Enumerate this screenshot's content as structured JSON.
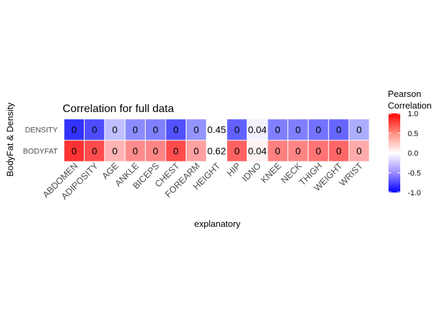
{
  "chart_data": {
    "type": "heatmap",
    "title": "Correlation for full data",
    "xlabel": "explanatory",
    "ylabel": "BodyFat & Density",
    "x_categories": [
      "ABDOMEN",
      "ADIPOSITY",
      "AGE",
      "ANKLE",
      "BICEPS",
      "CHEST",
      "FOREARM",
      "HEIGHT",
      "HIP",
      "IDNO",
      "KNEE",
      "NECK",
      "THIGH",
      "WEIGHT",
      "WRIST"
    ],
    "y_categories": [
      "DENSITY",
      "BODYFAT"
    ],
    "cell_labels": [
      [
        "0",
        "0",
        "0",
        "0",
        "0",
        "0",
        "0",
        "0.45",
        "0",
        "0.04",
        "0",
        "0",
        "0",
        "0",
        "0"
      ],
      [
        "0",
        "0",
        "0",
        "0",
        "0",
        "0",
        "0",
        "0.62",
        "0",
        "0.04",
        "0",
        "0",
        "0",
        "0",
        "0"
      ]
    ],
    "fill_values": [
      [
        -0.8,
        -0.7,
        -0.25,
        -0.45,
        -0.5,
        -0.68,
        -0.42,
        null,
        -0.62,
        -0.05,
        -0.5,
        -0.5,
        -0.55,
        -0.6,
        -0.32
      ],
      [
        0.8,
        0.7,
        0.3,
        0.45,
        0.48,
        0.7,
        0.37,
        null,
        0.62,
        0.05,
        0.5,
        0.48,
        0.55,
        0.6,
        0.33
      ]
    ],
    "legend": {
      "title_lines": [
        "Pearson",
        "Correlation"
      ],
      "ticks": [
        "1.0",
        "0.5",
        "0.0",
        "-0.5",
        "-1.0"
      ],
      "tick_values": [
        1.0,
        0.5,
        0.0,
        -0.5,
        -1.0
      ],
      "range": [
        -1,
        1
      ],
      "low_color": "#0000ff",
      "mid_color": "#ffffff",
      "high_color": "#ff0000",
      "position": "right"
    },
    "grid": false
  }
}
